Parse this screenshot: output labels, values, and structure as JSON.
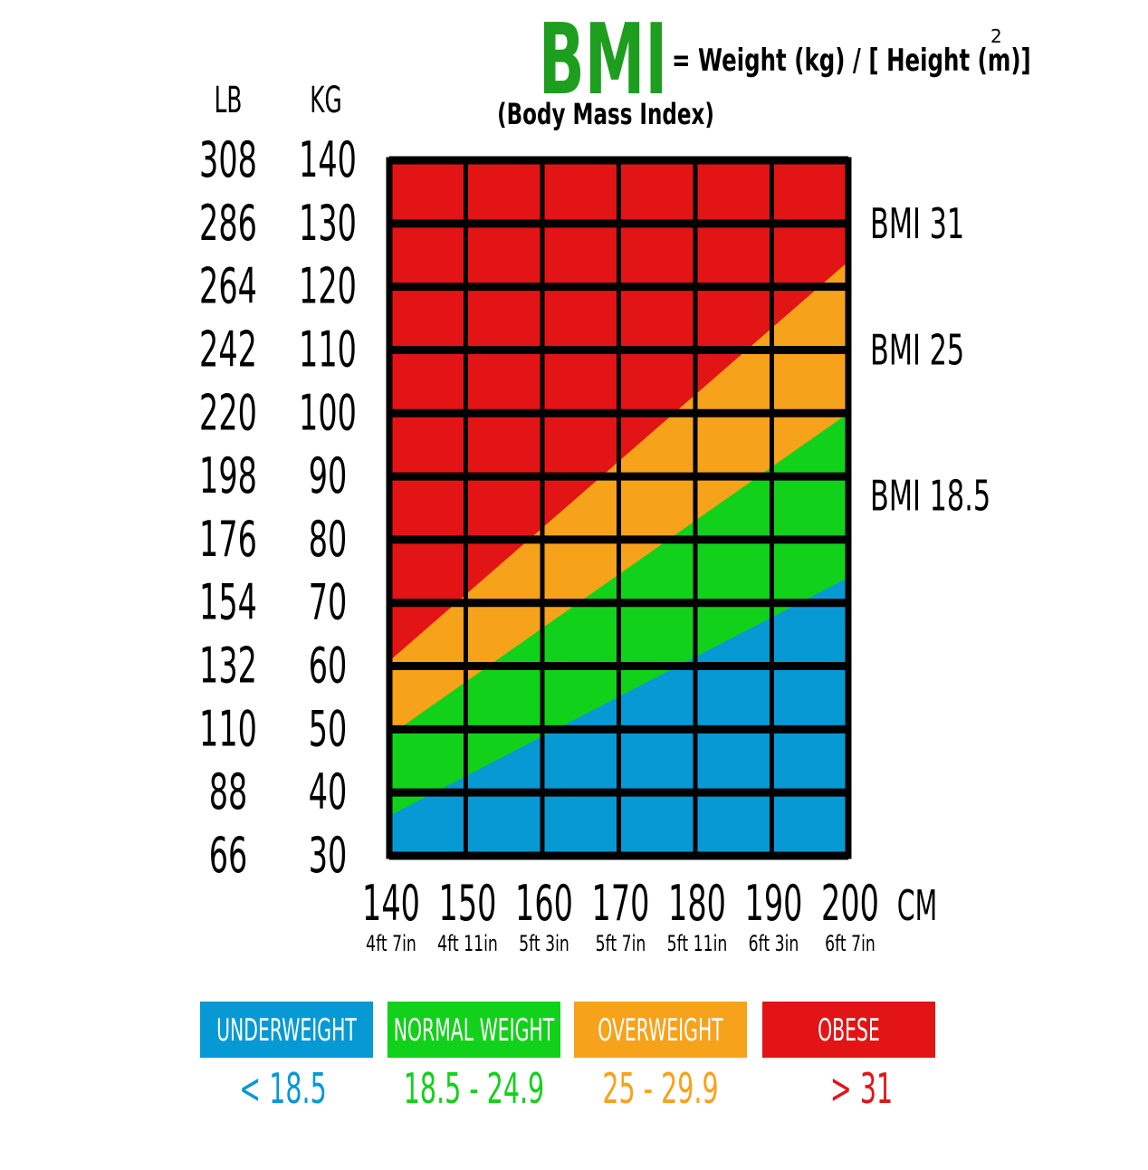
{
  "header": {
    "title": "BMI",
    "formula": "= Weight (kg) / [ Height (m)]",
    "exponent": "2",
    "subtitle": "(Body Mass Index)"
  },
  "axis_headers": {
    "lb": "LB",
    "kg": "KG"
  },
  "colors": {
    "underweight": "#0799d4",
    "normal": "#12d11a",
    "overweight": "#f7a21b",
    "obese": "#e21415",
    "title_green": "#1e9e1e",
    "grid": "#000000"
  },
  "chart_data": {
    "type": "heatmap",
    "title": "BMI",
    "x": {
      "label": "CM",
      "values": [
        140,
        150,
        160,
        170,
        180,
        190,
        200
      ],
      "tick_labels": [
        "140",
        "150",
        "160",
        "170",
        "180",
        "190",
        "200"
      ],
      "imperial_labels": [
        "4ft 7in",
        "4ft 11in",
        "5ft 3in",
        "5ft 7in",
        "5ft 11in",
        "6ft 3in",
        "6ft 7in"
      ],
      "range": [
        140,
        200
      ]
    },
    "y": {
      "kg_label": "KG",
      "lb_label": "LB",
      "kg_values": [
        140,
        130,
        120,
        110,
        100,
        90,
        80,
        70,
        60,
        50,
        40,
        30
      ],
      "kg_tick_labels": [
        "140",
        "130",
        "120",
        "110",
        "100",
        "90",
        "80",
        "70",
        "60",
        "50",
        "40",
        "30"
      ],
      "lb_tick_labels": [
        "308",
        "286",
        "264",
        "242",
        "220",
        "198",
        "176",
        "154",
        "132",
        "110",
        "88",
        "66"
      ],
      "range": [
        30,
        140
      ]
    },
    "boundary_labels": [
      {
        "text": "BMI 31",
        "kg_at": 130
      },
      {
        "text": "BMI 25",
        "kg_at": 110
      },
      {
        "text": "BMI 18.5",
        "kg_at": 86.9
      }
    ],
    "boundaries": [
      {
        "bmi": 18.5,
        "from": [
          140,
          36.3
        ],
        "to": [
          200,
          74.0
        ]
      },
      {
        "bmi": 25,
        "from": [
          140,
          49.0
        ],
        "to": [
          200,
          100.0
        ]
      },
      {
        "bmi": 31,
        "from": [
          140,
          60.8
        ],
        "to": [
          200,
          124.0
        ]
      }
    ],
    "categories": [
      {
        "name": "UNDERWEIGHT",
        "range": "< 18.5",
        "color": "#0799d4"
      },
      {
        "name": "NORMAL WEIGHT",
        "range": "18.5 - 24.9",
        "color": "#12d11a"
      },
      {
        "name": "OVERWEIGHT",
        "range": "25 - 29.9",
        "color": "#f7a21b"
      },
      {
        "name": "OBESE",
        "range": "> 31",
        "color": "#e21415"
      }
    ]
  }
}
